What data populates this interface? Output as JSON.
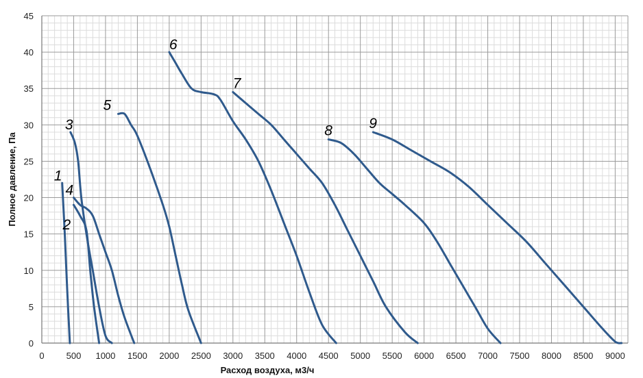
{
  "chart_data": {
    "type": "line",
    "title": "",
    "xlabel": "Расход воздуха, м3/ч",
    "ylabel": "Полное давление, Па",
    "xlim": [
      0,
      9200
    ],
    "ylim": [
      0,
      45
    ],
    "xticks": [
      0,
      500,
      1000,
      1500,
      2000,
      2500,
      3000,
      3500,
      4000,
      4500,
      5000,
      5500,
      6000,
      6500,
      7000,
      7500,
      8000,
      8500,
      9000
    ],
    "yticks": [
      0,
      5,
      10,
      15,
      20,
      25,
      30,
      35,
      40,
      45
    ],
    "grid": true,
    "minor_grid": true,
    "legend": "none",
    "line_color": "#2f5a8c",
    "series": [
      {
        "name": "1",
        "points": [
          [
            320,
            22
          ],
          [
            360,
            15
          ],
          [
            400,
            7
          ],
          [
            440,
            0
          ]
        ]
      },
      {
        "name": "2",
        "points": [
          [
            500,
            19
          ],
          [
            600,
            17.5
          ],
          [
            700,
            15.5
          ],
          [
            760,
            10
          ],
          [
            820,
            5
          ],
          [
            900,
            0
          ]
        ]
      },
      {
        "name": "3",
        "points": [
          [
            450,
            29
          ],
          [
            520,
            27.5
          ],
          [
            570,
            25
          ],
          [
            620,
            20
          ],
          [
            700,
            15
          ],
          [
            800,
            10
          ],
          [
            900,
            5
          ],
          [
            1000,
            1
          ],
          [
            1100,
            0
          ]
        ]
      },
      {
        "name": "4",
        "points": [
          [
            500,
            20
          ],
          [
            600,
            19
          ],
          [
            700,
            18.5
          ],
          [
            800,
            17.5
          ],
          [
            900,
            15
          ],
          [
            1000,
            12.5
          ],
          [
            1100,
            10
          ],
          [
            1200,
            6.5
          ],
          [
            1300,
            3.5
          ],
          [
            1450,
            0
          ]
        ]
      },
      {
        "name": "5",
        "points": [
          [
            1200,
            31.5
          ],
          [
            1300,
            31.5
          ],
          [
            1400,
            30
          ],
          [
            1500,
            28.5
          ],
          [
            1700,
            24
          ],
          [
            1900,
            19
          ],
          [
            2000,
            16
          ],
          [
            2100,
            12
          ],
          [
            2200,
            8
          ],
          [
            2300,
            4.5
          ],
          [
            2500,
            0
          ]
        ]
      },
      {
        "name": "6",
        "points": [
          [
            2000,
            40
          ],
          [
            2100,
            38.5
          ],
          [
            2200,
            37
          ],
          [
            2350,
            35
          ],
          [
            2500,
            34.5
          ],
          [
            2700,
            34.2
          ],
          [
            2800,
            33.5
          ],
          [
            3000,
            30.5
          ],
          [
            3200,
            28
          ],
          [
            3400,
            25
          ],
          [
            3600,
            21
          ],
          [
            3800,
            16.5
          ],
          [
            4000,
            12
          ],
          [
            4200,
            7
          ],
          [
            4400,
            2.5
          ],
          [
            4620,
            0
          ]
        ]
      },
      {
        "name": "7",
        "points": [
          [
            3000,
            34.5
          ],
          [
            3200,
            33
          ],
          [
            3400,
            31.5
          ],
          [
            3600,
            30
          ],
          [
            3800,
            28
          ],
          [
            4000,
            26
          ],
          [
            4200,
            24
          ],
          [
            4400,
            22
          ],
          [
            4600,
            19
          ],
          [
            4800,
            15.5
          ],
          [
            5000,
            12
          ],
          [
            5200,
            8.5
          ],
          [
            5400,
            5
          ],
          [
            5700,
            1.5
          ],
          [
            5900,
            0
          ]
        ]
      },
      {
        "name": "8",
        "points": [
          [
            4500,
            28
          ],
          [
            4700,
            27.5
          ],
          [
            4900,
            26
          ],
          [
            5100,
            24
          ],
          [
            5300,
            22
          ],
          [
            5500,
            20.5
          ],
          [
            5700,
            19
          ],
          [
            6000,
            16.5
          ],
          [
            6200,
            14
          ],
          [
            6400,
            11
          ],
          [
            6600,
            8
          ],
          [
            6800,
            5
          ],
          [
            7000,
            2
          ],
          [
            7200,
            0
          ]
        ]
      },
      {
        "name": "9",
        "points": [
          [
            5200,
            29
          ],
          [
            5500,
            28
          ],
          [
            5800,
            26.5
          ],
          [
            6100,
            25
          ],
          [
            6400,
            23.5
          ],
          [
            6700,
            21.5
          ],
          [
            7000,
            19
          ],
          [
            7300,
            16.5
          ],
          [
            7600,
            14
          ],
          [
            7900,
            11
          ],
          [
            8200,
            8
          ],
          [
            8500,
            5
          ],
          [
            8800,
            2
          ],
          [
            9000,
            0.2
          ],
          [
            9100,
            0
          ]
        ]
      }
    ]
  }
}
